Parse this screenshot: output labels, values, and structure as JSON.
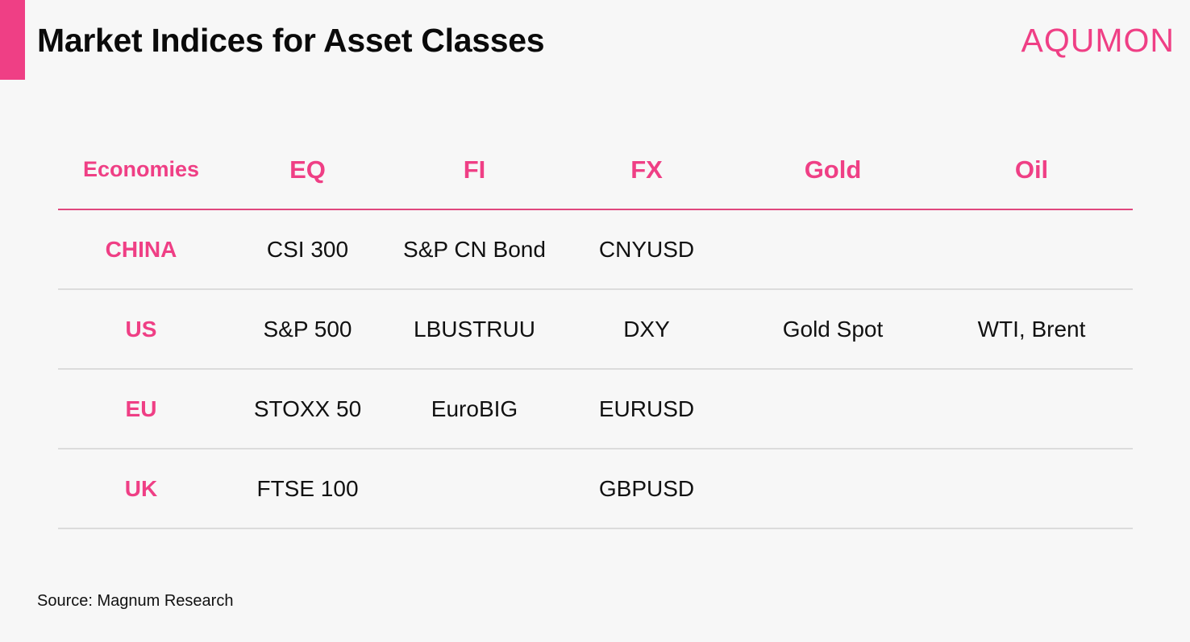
{
  "title": "Market Indices for Asset Classes",
  "brand": "AQUMON",
  "colors": {
    "accent": "#ef3f85",
    "divider": "#dcdcdc",
    "text": "#111111",
    "background": "#f7f7f7"
  },
  "table": {
    "headers": [
      "Economies",
      "EQ",
      "FI",
      "FX",
      "Gold",
      "Oil"
    ],
    "rows": [
      {
        "economy": "CHINA",
        "cells": [
          "CSI 300",
          "S&P CN Bond",
          "CNYUSD",
          "",
          ""
        ]
      },
      {
        "economy": "US",
        "cells": [
          "S&P 500",
          "LBUSTRUU",
          "DXY",
          "Gold Spot",
          "WTI, Brent"
        ]
      },
      {
        "economy": "EU",
        "cells": [
          "STOXX 50",
          "EuroBIG",
          "EURUSD",
          "",
          ""
        ]
      },
      {
        "economy": "UK",
        "cells": [
          "FTSE 100",
          "",
          "GBPUSD",
          "",
          ""
        ]
      }
    ]
  },
  "source": "Source: Magnum Research"
}
